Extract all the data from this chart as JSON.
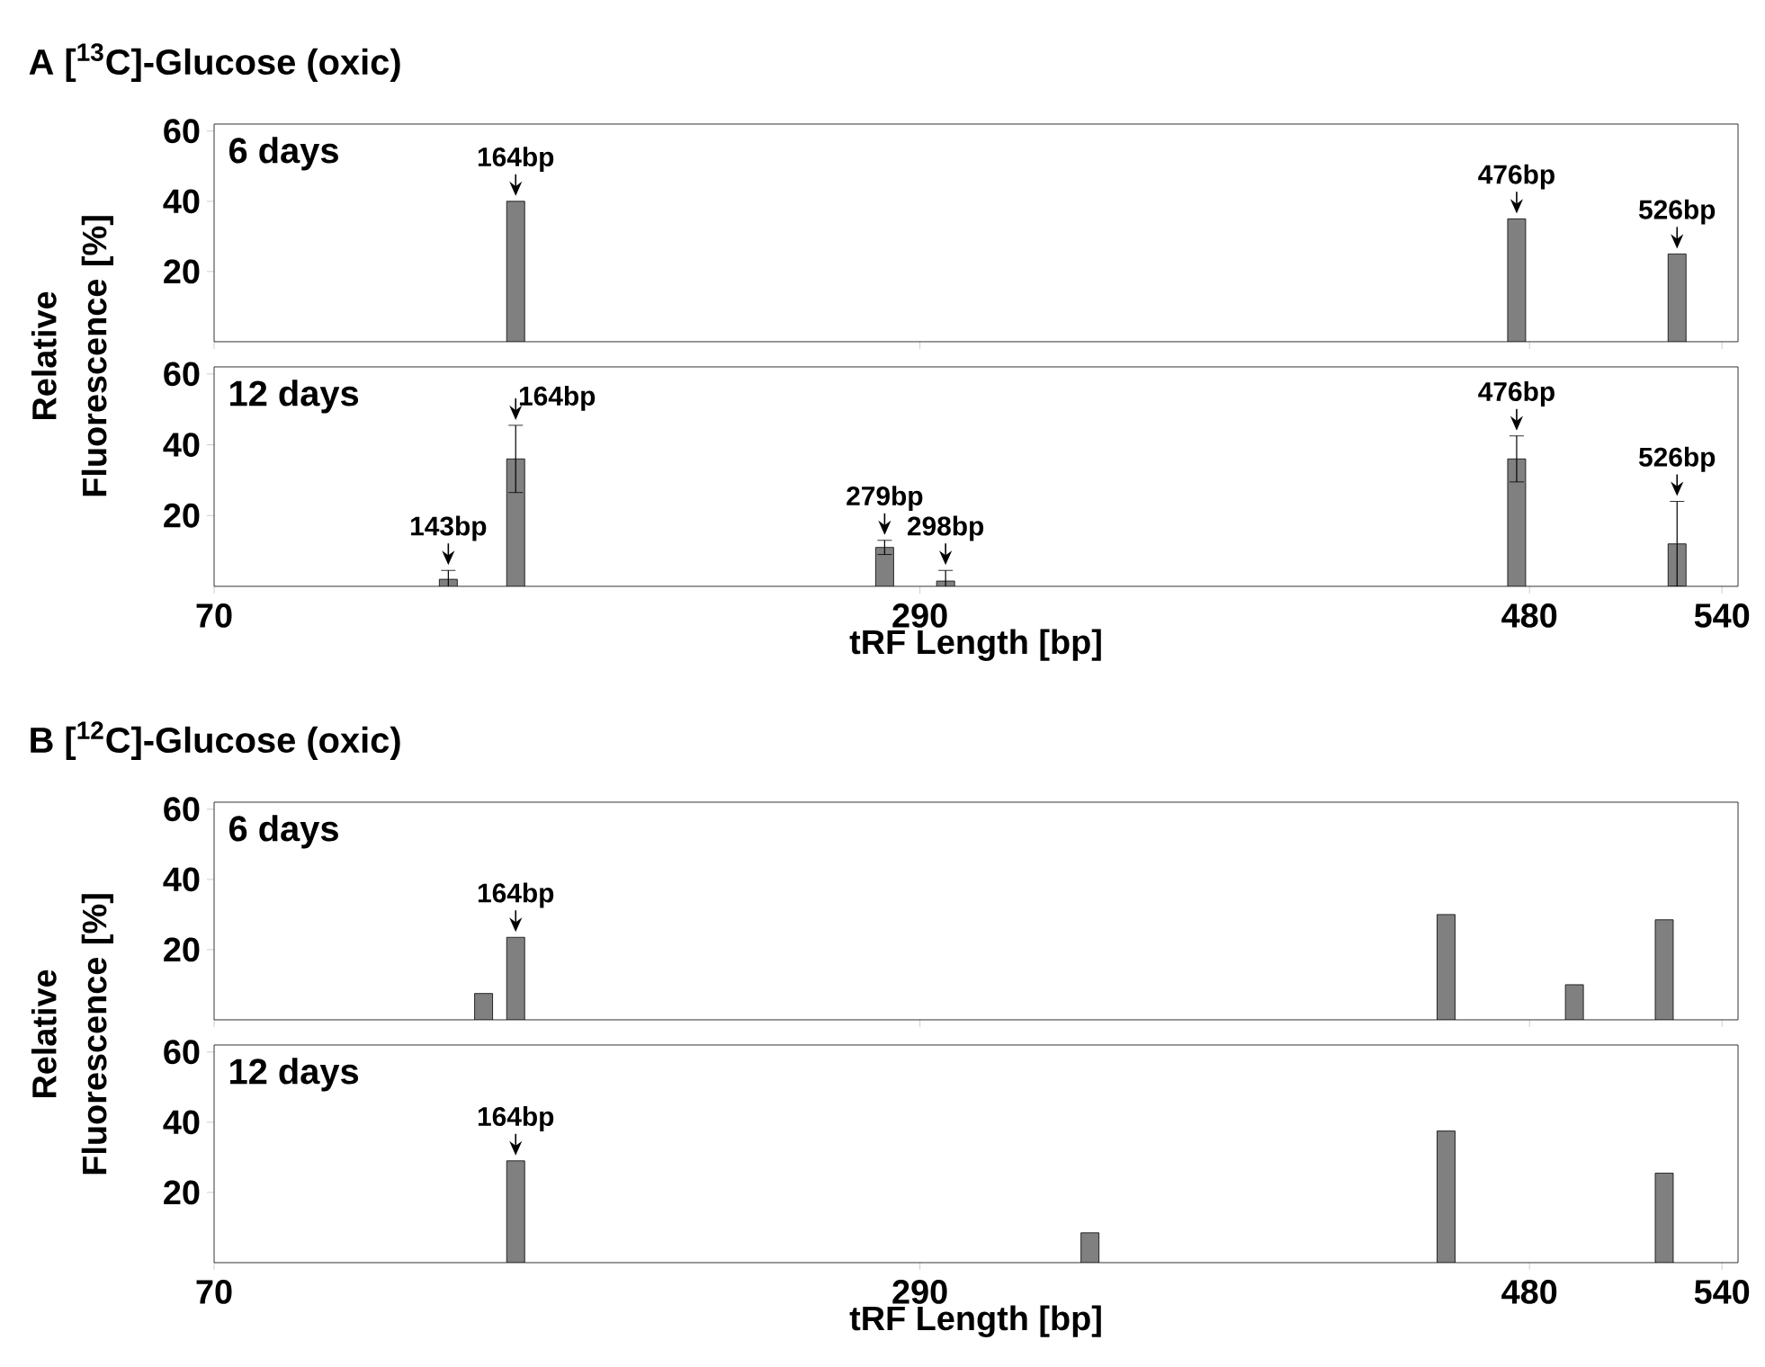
{
  "chart_data": [
    {
      "type": "bar",
      "title": "A [$^{13}$C]-Glucose (oxic)",
      "ylabel": "Relative Fluorescence [%]",
      "x": [
        164,
        476,
        526
      ],
      "values": [
        40,
        35,
        25
      ],
      "color": "#808080",
      "xlim": [
        70,
        545
      ],
      "xticks": [
        70,
        290,
        480,
        540
      ],
      "ylim": [
        0,
        62
      ],
      "yticks": [
        20,
        40,
        60
      ],
      "tick_labels": "y",
      "annotations": [
        "6 days",
        {
          "text": "164bp",
          "x": 164,
          "y": 40
        },
        {
          "text": "476bp",
          "x": 476,
          "y": 35
        },
        {
          "text": "526bp",
          "x": 526,
          "y": 25
        }
      ]
    },
    {
      "type": "bar",
      "xlabel": "tRF Length [bp]",
      "x": [
        143,
        164,
        279,
        298,
        476,
        526
      ],
      "values": [
        2,
        36,
        11,
        1.5,
        36,
        12
      ],
      "errors": [
        2.5,
        9.5,
        2,
        3,
        6.5,
        12
      ],
      "color": "#808080",
      "xlim": [
        70,
        545
      ],
      "xticks": [
        70,
        290,
        480,
        540
      ],
      "ylim": [
        0,
        62
      ],
      "yticks": [
        20,
        40,
        60
      ],
      "annotations": [
        "12 days",
        {
          "text": "143bp",
          "x": 143,
          "y": 2
        },
        {
          "text": "164bp",
          "x": 164,
          "y": 36
        },
        {
          "text": "279bp",
          "x": 279,
          "y": 11
        },
        {
          "text": "298bp",
          "x": 298,
          "y": 1.5
        },
        {
          "text": "476bp",
          "x": 476,
          "y": 36
        },
        {
          "text": "526bp",
          "x": 526,
          "y": 12
        }
      ]
    },
    {
      "type": "bar",
      "title": "B [$^{12}$C]-Glucose (oxic)",
      "ylabel": "Relative Fluorescence [%]",
      "x": [
        154,
        164,
        454,
        494,
        522
      ],
      "values": [
        7.5,
        23.5,
        30,
        10,
        28.5
      ],
      "color": "#808080",
      "xlim": [
        70,
        545
      ],
      "xticks": [
        70,
        290,
        480,
        540
      ],
      "ylim": [
        0,
        62
      ],
      "yticks": [
        20,
        40,
        60
      ],
      "tick_labels": "y",
      "annotations": [
        "6 days",
        {
          "text": "164bp",
          "x": 164,
          "y": 23.5
        }
      ]
    },
    {
      "type": "bar",
      "xlabel": "tRF Length [bp]",
      "x": [
        164,
        343,
        454,
        522
      ],
      "values": [
        29,
        8.5,
        37.5,
        25.5
      ],
      "color": "#808080",
      "xlim": [
        70,
        545
      ],
      "xticks": [
        70,
        290,
        480,
        540
      ],
      "ylim": [
        0,
        62
      ],
      "yticks": [
        20,
        40,
        60
      ],
      "annotations": [
        "12 days",
        {
          "text": "164bp",
          "x": 164,
          "y": 29
        }
      ]
    }
  ]
}
